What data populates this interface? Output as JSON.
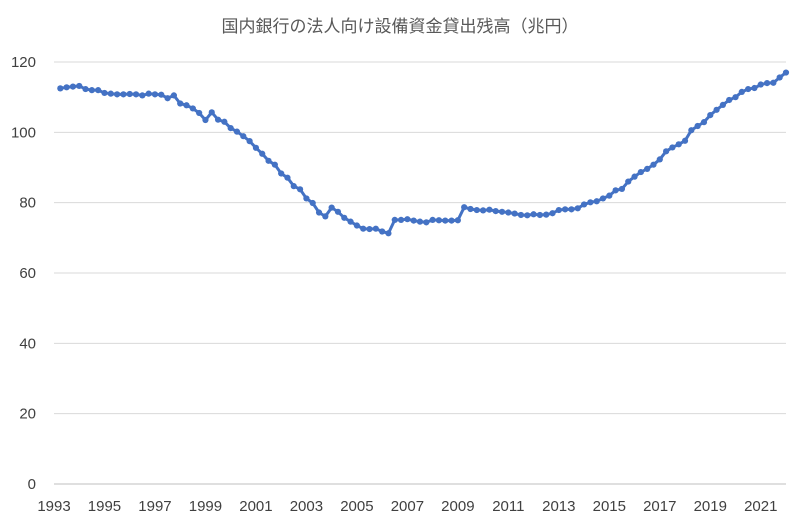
{
  "chart_data": {
    "type": "line",
    "title": "国内銀行の法人向け設備資金貸出残高（兆円）",
    "xlabel": "",
    "ylabel": "",
    "xlim": [
      1993.0,
      2022.0
    ],
    "ylim": [
      0,
      120
    ],
    "y_ticks": [
      0,
      20,
      40,
      60,
      80,
      100,
      120
    ],
    "x_tick_labels": [
      "1993",
      "1995",
      "1997",
      "1999",
      "2001",
      "2003",
      "2005",
      "2007",
      "2009",
      "2011",
      "2013",
      "2015",
      "2017",
      "2019",
      "2021"
    ],
    "grid": "horizontal",
    "legend": "none",
    "series_color": "#4472c4",
    "series": [
      {
        "x": [
          1993.25,
          1993.5,
          1993.75,
          1994.0,
          1994.25,
          1994.5,
          1994.75,
          1995.0,
          1995.25,
          1995.5,
          1995.75,
          1996.0,
          1996.25,
          1996.5,
          1996.75,
          1997.0,
          1997.25,
          1997.5,
          1997.75,
          1998.0,
          1998.25,
          1998.5,
          1998.75,
          1999.0,
          1999.25,
          1999.5,
          1999.75,
          2000.0,
          2000.25,
          2000.5,
          2000.75,
          2001.0,
          2001.25,
          2001.5,
          2001.75,
          2002.0,
          2002.25,
          2002.5,
          2002.75,
          2003.0,
          2003.25,
          2003.5,
          2003.75,
          2004.0,
          2004.25,
          2004.5,
          2004.75,
          2005.0,
          2005.25,
          2005.5,
          2005.75,
          2006.0,
          2006.25,
          2006.5,
          2006.75,
          2007.0,
          2007.25,
          2007.5,
          2007.75,
          2008.0,
          2008.25,
          2008.5,
          2008.75,
          2009.0,
          2009.25,
          2009.5,
          2009.75,
          2010.0,
          2010.25,
          2010.5,
          2010.75,
          2011.0,
          2011.25,
          2011.5,
          2011.75,
          2012.0,
          2012.25,
          2012.5,
          2012.75,
          2013.0,
          2013.25,
          2013.5,
          2013.75,
          2014.0,
          2014.25,
          2014.5,
          2014.75,
          2015.0,
          2015.25,
          2015.5,
          2015.75,
          2016.0,
          2016.25,
          2016.5,
          2016.75,
          2017.0,
          2017.25,
          2017.5,
          2017.75,
          2018.0,
          2018.25,
          2018.5,
          2018.75,
          2019.0,
          2019.25,
          2019.5,
          2019.75,
          2020.0,
          2020.25,
          2020.5,
          2020.75,
          2021.0,
          2021.25,
          2021.5,
          2021.75,
          2022.0
        ],
        "values": [
          112.5,
          112.8,
          113.0,
          113.2,
          112.3,
          112.0,
          112.0,
          111.2,
          111.0,
          110.8,
          110.8,
          110.9,
          110.8,
          110.5,
          111.0,
          110.8,
          110.7,
          109.7,
          110.5,
          108.2,
          107.7,
          106.8,
          105.5,
          103.5,
          105.7,
          103.6,
          103.0,
          101.2,
          100.2,
          98.9,
          97.5,
          95.6,
          93.9,
          91.9,
          90.8,
          88.3,
          87.1,
          84.7,
          83.8,
          81.2,
          79.9,
          77.2,
          76.1,
          78.6,
          77.4,
          75.7,
          74.6,
          73.5,
          72.6,
          72.5,
          72.6,
          71.8,
          71.3,
          75.1,
          75.1,
          75.3,
          74.9,
          74.6,
          74.4,
          75.1,
          75.0,
          74.9,
          74.9,
          75.0,
          78.7,
          78.2,
          77.9,
          77.8,
          78.0,
          77.6,
          77.4,
          77.2,
          76.9,
          76.5,
          76.4,
          76.7,
          76.5,
          76.6,
          77.0,
          77.9,
          78.1,
          78.1,
          78.4,
          79.5,
          80.1,
          80.4,
          81.2,
          82.0,
          83.5,
          83.9,
          86.0,
          87.4,
          88.7,
          89.6,
          90.8,
          92.3,
          94.6,
          95.7,
          96.6,
          97.6,
          100.6,
          101.8,
          102.9,
          104.9,
          106.4,
          107.8,
          109.2,
          110.0,
          111.5,
          112.3,
          112.6,
          113.6,
          114.0,
          114.1,
          115.6,
          117.0
        ]
      }
    ]
  }
}
